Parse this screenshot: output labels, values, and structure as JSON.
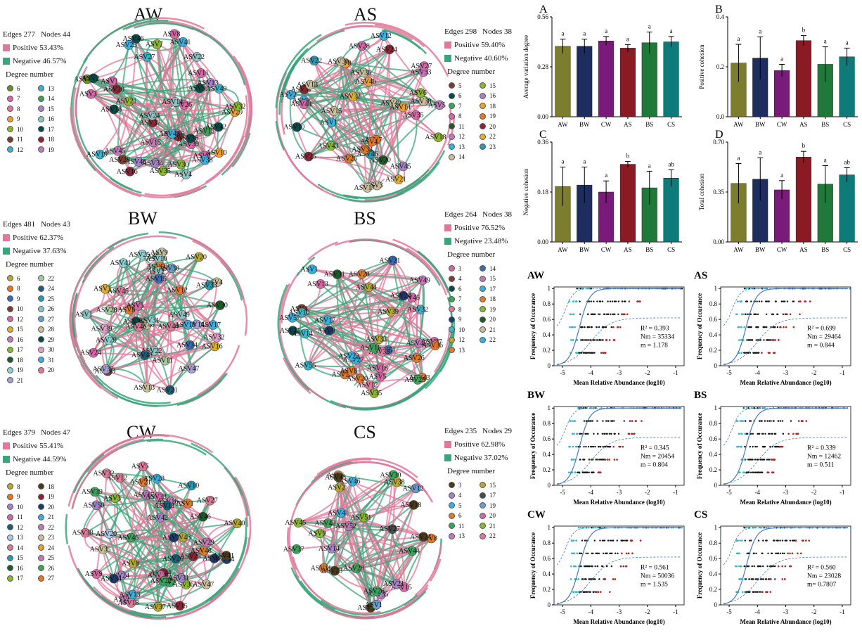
{
  "networks": [
    {
      "id": "AW",
      "title": "AW",
      "edges_label": "Edges 277",
      "nodes_label": "Nodes 44",
      "positive": "Positive 53.43%",
      "negative": "Negative 46.57%",
      "degree_title": "Degree number",
      "degrees": [
        {
          "v": "6",
          "c": "#6b8e23"
        },
        {
          "v": "13",
          "c": "#3cb4c8"
        },
        {
          "v": "7",
          "c": "#d667a6"
        },
        {
          "v": "14",
          "c": "#3aa55a"
        },
        {
          "v": "8",
          "c": "#d87a98"
        },
        {
          "v": "15",
          "c": "#a583c8"
        },
        {
          "v": "9",
          "c": "#e8a030"
        },
        {
          "v": "16",
          "c": "#8fc3c3"
        },
        {
          "v": "10",
          "c": "#8ab82e"
        },
        {
          "v": "17",
          "c": "#0c4a4a"
        },
        {
          "v": "11",
          "c": "#7b3f2e"
        },
        {
          "v": "18",
          "c": "#8b2635"
        },
        {
          "v": "12",
          "c": "#3ab0e0"
        },
        {
          "v": "19",
          "c": "#c07ab8"
        }
      ],
      "node_labels": [
        "ASV4",
        "ASV25",
        "ASV45",
        "ASV1",
        "ASV13",
        "ASV30",
        "ASV29",
        "ASV21",
        "ASV37",
        "ASV28",
        "ASV19",
        "ASV44",
        "ASV24",
        "ASV55",
        "ASV9",
        "ASV3",
        "ASV12",
        "ASV49",
        "ASV6",
        "ASV5",
        "ASV16",
        "ASV38",
        "ASV26",
        "ASV11",
        "ASV18",
        "ASV20",
        "ASV35",
        "ASV27",
        "ASV39",
        "ASV22",
        "ASV40",
        "ASV46",
        "ASV34",
        "ASV8",
        "ASV2",
        "ASV32",
        "ASV36",
        "ASV7",
        "ASV14",
        "ASV10",
        "ASV41",
        "ASV42",
        "ASV43",
        "ASV15"
      ]
    },
    {
      "id": "AS",
      "title": "AS",
      "edges_label": "Edges 298",
      "nodes_label": "Nodes 38",
      "positive": "Positive 59.40%",
      "negative": "Negative 40.60%",
      "degree_title": "Degree number",
      "degrees": [
        {
          "v": "5",
          "c": "#7b3f2e"
        },
        {
          "v": "15",
          "c": "#8ab82e"
        },
        {
          "v": "6",
          "c": "#0c4a4a"
        },
        {
          "v": "16",
          "c": "#a583c8"
        },
        {
          "v": "7",
          "c": "#3aa55a"
        },
        {
          "v": "18",
          "c": "#e8a030"
        },
        {
          "v": "8",
          "c": "#d667a6"
        },
        {
          "v": "19",
          "c": "#e07a2a"
        },
        {
          "v": "11",
          "c": "#1f5c2a"
        },
        {
          "v": "20",
          "c": "#8b2635"
        },
        {
          "v": "12",
          "c": "#c07ab8"
        },
        {
          "v": "22",
          "c": "#e0b030"
        },
        {
          "v": "13",
          "c": "#3ab0e0"
        },
        {
          "v": "23",
          "c": "#2a9ab0"
        },
        {
          "v": "14",
          "c": "#c8bf9a"
        }
      ],
      "node_labels": [
        "ASV9",
        "ASV1",
        "ASV38",
        "ASV42",
        "ASV3",
        "ASV7",
        "ASV22",
        "ASV44",
        "ASV20",
        "ASV18",
        "ASV24",
        "ASV28",
        "ASV15",
        "ASV17",
        "ASV31",
        "ASV46",
        "ASV2",
        "ASV4",
        "ASV8",
        "ASV5",
        "ASV35",
        "ASV33",
        "ASV30",
        "ASV36",
        "ASV40",
        "ASV13",
        "ASV14",
        "ASV12",
        "ASV45",
        "ASV10",
        "ASV27",
        "ASV6",
        "ASV32",
        "ASV25",
        "ASV43",
        "ASV34",
        "ASV21",
        "ASV26"
      ]
    },
    {
      "id": "BW",
      "title": "BW",
      "edges_label": "Edges 481",
      "nodes_label": "Nodes 43",
      "positive": "Positive 62.37%",
      "negative": "Negative 37.63%",
      "degree_title": "Degree number",
      "degrees": [
        {
          "v": "6",
          "c": "#b8a830"
        },
        {
          "v": "22",
          "c": "#a8c8a0"
        },
        {
          "v": "8",
          "c": "#e07a2a"
        },
        {
          "v": "24",
          "c": "#1f5c7a"
        },
        {
          "v": "9",
          "c": "#3a6ab0"
        },
        {
          "v": "25",
          "c": "#2a9ab0"
        },
        {
          "v": "10",
          "c": "#7b3f2e"
        },
        {
          "v": "26",
          "c": "#8fc3c3"
        },
        {
          "v": "12",
          "c": "#d667a6"
        },
        {
          "v": "27",
          "c": "#6aa0c0"
        },
        {
          "v": "15",
          "c": "#e0b030"
        },
        {
          "v": "28",
          "c": "#c8bf9a"
        },
        {
          "v": "16",
          "c": "#c07ab8"
        },
        {
          "v": "29",
          "c": "#0c4a4a"
        },
        {
          "v": "17",
          "c": "#8ab82e"
        },
        {
          "v": "30",
          "c": "#e0a0c8"
        },
        {
          "v": "18",
          "c": "#1f5c2a"
        },
        {
          "v": "31",
          "c": "#3ab0e0"
        },
        {
          "v": "19",
          "c": "#8fd0d0"
        },
        {
          "v": "20",
          "c": "#d87a98"
        },
        {
          "v": "21",
          "c": "#a8a0d0"
        }
      ],
      "node_labels": [
        "ASV21",
        "ASV6",
        "ASV39",
        "ASV30",
        "ASV9",
        "ASV43",
        "ASV4",
        "ASV16",
        "ASV35",
        "ASV32",
        "ASV3",
        "ASV28",
        "ASV41",
        "ASV17",
        "ASV37",
        "ASV22",
        "ASV14",
        "ASV29",
        "ASV40",
        "ASV10",
        "ASV50",
        "ASV46",
        "ASV1",
        "ASV8",
        "ASV44",
        "ASV24",
        "ASV2",
        "ASV31",
        "ASV45",
        "ASV48",
        "ASV34",
        "ASV49",
        "ASV47",
        "ASV38",
        "ASV11",
        "ASV33",
        "ASV25",
        "ASV13",
        "ASV5",
        "ASV20",
        "ASV12",
        "ASV18",
        "ASV15"
      ]
    },
    {
      "id": "BS",
      "title": "BS",
      "edges_label": "Edges 264",
      "nodes_label": "Nodes 38",
      "positive": "Positive 76.52%",
      "negative": "Negative 23.48%",
      "degree_title": "Degree number",
      "degrees": [
        {
          "v": "3",
          "c": "#d667a6"
        },
        {
          "v": "14",
          "c": "#3a6ab0"
        },
        {
          "v": "4",
          "c": "#7b3f2e"
        },
        {
          "v": "15",
          "c": "#c07ab8"
        },
        {
          "v": "6",
          "c": "#0c4a4a"
        },
        {
          "v": "17",
          "c": "#3ab0e0"
        },
        {
          "v": "7",
          "c": "#3aa55a"
        },
        {
          "v": "18",
          "c": "#e07a2a"
        },
        {
          "v": "8",
          "c": "#d87a98"
        },
        {
          "v": "19",
          "c": "#8ab82e"
        },
        {
          "v": "9",
          "c": "#1f3a6a"
        },
        {
          "v": "20",
          "c": "#1f5c2a"
        },
        {
          "v": "10",
          "c": "#3cb4c8"
        },
        {
          "v": "21",
          "c": "#c8bf9a"
        },
        {
          "v": "12",
          "c": "#b8a830"
        },
        {
          "v": "22",
          "c": "#3ab0e0"
        },
        {
          "v": "13",
          "c": "#e07a2a"
        }
      ],
      "node_labels": [
        "ASV57",
        "ASV17",
        "ASV55",
        "ASV51",
        "ASV28",
        "ASV37",
        "ASV33",
        "ASV26",
        "ASV5",
        "ASV45",
        "ASV27",
        "ASV43",
        "ASV13",
        "ASV12",
        "ASV23",
        "ASV22",
        "ASV20",
        "ASV31",
        "ASV42",
        "ASV8",
        "ASV11",
        "ASV49",
        "ASV21",
        "ASV38",
        "ASV14",
        "ASV24",
        "ASV44",
        "ASV4",
        "ASV9",
        "ASV32",
        "ASV39",
        "ASV25",
        "ASV35",
        "ASV16",
        "ASV1",
        "ASV10",
        "ASV18",
        "ASV36"
      ]
    },
    {
      "id": "CW",
      "title": "CW",
      "edges_label": "Edges 379",
      "nodes_label": "Nodes 47",
      "positive": "Positive 55.41%",
      "negative": "Negative 44.59%",
      "degree_title": "Degree number",
      "degrees": [
        {
          "v": "8",
          "c": "#b8a830"
        },
        {
          "v": "18",
          "c": "#4a3a1a"
        },
        {
          "v": "9",
          "c": "#e07a2a"
        },
        {
          "v": "19",
          "c": "#8b2635"
        },
        {
          "v": "10",
          "c": "#a583c8"
        },
        {
          "v": "20",
          "c": "#1f3a6a"
        },
        {
          "v": "11",
          "c": "#d667a6"
        },
        {
          "v": "21",
          "c": "#3ab0e0"
        },
        {
          "v": "12",
          "c": "#1f5c7a"
        },
        {
          "v": "22",
          "c": "#c07ab8"
        },
        {
          "v": "13",
          "c": "#a8c8e8"
        },
        {
          "v": "23",
          "c": "#c8bf9a"
        },
        {
          "v": "14",
          "c": "#d87a98"
        },
        {
          "v": "24",
          "c": "#e8a030"
        },
        {
          "v": "15",
          "c": "#2a9ab0"
        },
        {
          "v": "25",
          "c": "#c07ab8"
        },
        {
          "v": "16",
          "c": "#1f5c2a"
        },
        {
          "v": "26",
          "c": "#3aa55a"
        },
        {
          "v": "17",
          "c": "#8ab82e"
        },
        {
          "v": "27",
          "c": "#e07a2a"
        }
      ],
      "node_labels": [
        "ASV37",
        "ASV46",
        "ASV9",
        "ASV40",
        "ASV17",
        "ASV5",
        "ASV27",
        "ASV6",
        "ASV1",
        "ASV25",
        "ASV24",
        "ASV50",
        "ASV14",
        "ASV12",
        "ASV30",
        "ASV48",
        "ASV4",
        "ASV2",
        "ASV8",
        "ASV32",
        "ASV33",
        "ASV16",
        "ASV15",
        "ASV43",
        "ASV47",
        "ASV42",
        "ASV13",
        "ASV45",
        "ASV44",
        "ASV22",
        "ASV41",
        "ASV10",
        "ASV3",
        "ASV38",
        "ASV21",
        "ASV39",
        "ASV36",
        "ASV26",
        "ASV31",
        "ASV28",
        "ASV20",
        "ASV34",
        "ASV11",
        "ASV18",
        "ASV35",
        "ASV29",
        "ASV7"
      ]
    },
    {
      "id": "CS",
      "title": "CS",
      "edges_label": "Edges 235",
      "nodes_label": "Nodes 29",
      "positive": "Positive 62.98%",
      "negative": "Negative 37.02%",
      "degree_title": "Degree number",
      "degrees": [
        {
          "v": "3",
          "c": "#4a3a1a"
        },
        {
          "v": "15",
          "c": "#b8a830"
        },
        {
          "v": "4",
          "c": "#a583c8"
        },
        {
          "v": "17",
          "c": "#4a4a4a"
        },
        {
          "v": "5",
          "c": "#3ab0e0"
        },
        {
          "v": "19",
          "c": "#6aa0d0"
        },
        {
          "v": "6",
          "c": "#e07a2a"
        },
        {
          "v": "20",
          "c": "#d667a6"
        },
        {
          "v": "11",
          "c": "#3aa55a"
        },
        {
          "v": "21",
          "c": "#8ab82e"
        },
        {
          "v": "13",
          "c": "#c07ab8"
        },
        {
          "v": "22",
          "c": "#d87a98"
        }
      ],
      "node_labels": [
        "ASV8",
        "ASV42",
        "ASV46",
        "ASV35",
        "ASV52",
        "ASV30",
        "ASV10",
        "ASV26",
        "ASV51",
        "ASV1",
        "ASV11",
        "ASV2",
        "ASV9",
        "ASV45",
        "ASV18",
        "ASV15",
        "ASV23",
        "ASV24",
        "ASV27",
        "ASV6",
        "ASV12",
        "ASV14",
        "ASV28",
        "ASV37",
        "ASV44",
        "ASV38",
        "ASV21",
        "ASV41",
        "ASV43"
      ]
    }
  ],
  "bar_charts": [
    {
      "panel": "A",
      "ylabel": "Average variation degree",
      "categories": [
        "AW",
        "BW",
        "CW",
        "AS",
        "BS",
        "CS"
      ],
      "values": [
        0.395,
        0.395,
        0.425,
        0.385,
        0.415,
        0.42
      ],
      "errors": [
        0.04,
        0.04,
        0.025,
        0.02,
        0.06,
        0.03
      ],
      "letters": [
        "a",
        "a",
        "a",
        "a",
        "a",
        "a"
      ],
      "ylim": [
        0,
        0.56
      ],
      "yticks": [
        "0.00",
        "0.28",
        "0.56"
      ]
    },
    {
      "panel": "B",
      "ylabel": "Positive cohesion",
      "categories": [
        "AW",
        "BW",
        "CW",
        "AS",
        "BS",
        "CS"
      ],
      "values": [
        0.215,
        0.235,
        0.185,
        0.305,
        0.21,
        0.24
      ],
      "errors": [
        0.075,
        0.085,
        0.025,
        0.02,
        0.07,
        0.035
      ],
      "letters": [
        "a",
        "a",
        "a",
        "b",
        "a",
        "a"
      ],
      "ylim": [
        0,
        0.4
      ],
      "yticks": [
        "0.0",
        "0.2",
        "0.4"
      ]
    },
    {
      "panel": "C",
      "ylabel": "Negative cohesion",
      "categories": [
        "AW",
        "BW",
        "CW",
        "AS",
        "BS",
        "CS"
      ],
      "values": [
        0.2,
        0.205,
        0.18,
        0.28,
        0.195,
        0.23
      ],
      "errors": [
        0.07,
        0.065,
        0.04,
        0.01,
        0.06,
        0.03
      ],
      "letters": [
        "a",
        "a",
        "a",
        "b",
        "a",
        "ab"
      ],
      "ylim": [
        0,
        0.36
      ],
      "yticks": [
        "0.00",
        "0.18",
        "0.36"
      ]
    },
    {
      "panel": "D",
      "ylabel": "Total cohesion",
      "categories": [
        "AW",
        "BW",
        "CW",
        "AS",
        "BS",
        "CS"
      ],
      "values": [
        0.41,
        0.44,
        0.365,
        0.595,
        0.405,
        0.47
      ],
      "errors": [
        0.14,
        0.15,
        0.065,
        0.04,
        0.13,
        0.05
      ],
      "letters": [
        "a",
        "a",
        "a",
        "b",
        "a",
        "ab"
      ],
      "ylim": [
        0,
        0.7
      ],
      "yticks": [
        "0.00",
        "0.35",
        "0.70"
      ]
    }
  ],
  "neutral_charts": [
    {
      "title": "AW",
      "r2": "R² = 0.393",
      "nm": "Nm = 35334",
      "m": "m = 1.178"
    },
    {
      "title": "AS",
      "r2": "R² = 0.699",
      "nm": "Nm = 29464",
      "m": "m = 0.844"
    },
    {
      "title": "BW",
      "r2": "R² = 0.345",
      "nm": "Nm = 20454",
      "m": "m = 0.804"
    },
    {
      "title": "BS",
      "r2": "R² = 0.339",
      "nm": "Nm = 12462",
      "m": "m = 0.511"
    },
    {
      "title": "CW",
      "r2": "R² = 0.561",
      "nm": "Nm = 50036",
      "m": "m = 1.535"
    },
    {
      "title": "CS",
      "r2": "R² = 0.560",
      "nm": "Nm = 23028",
      "m": "m= 0.7807"
    }
  ],
  "neutral_axes": {
    "xlabel": "Mean Relative Abundance (log10)",
    "ylabel": "Frequency of Occurance",
    "xticks": [
      "-5",
      "-4",
      "-3",
      "-2",
      "-1"
    ],
    "yticks": [
      "0",
      "0.2",
      "0.4",
      "0.6",
      "0.8",
      "1"
    ]
  },
  "colors": {
    "positive": "#e0789a",
    "negative": "#3aa57a",
    "bar_colors": [
      "#7d7d2e",
      "#1c2d5e",
      "#7a1a7a",
      "#8a1a24",
      "#1f7a3a",
      "#0f7a7a"
    ]
  },
  "chart_data": [
    {
      "type": "bar",
      "panel": "A",
      "categories": [
        "AW",
        "BW",
        "CW",
        "AS",
        "BS",
        "CS"
      ],
      "values": [
        0.395,
        0.395,
        0.425,
        0.385,
        0.415,
        0.42
      ],
      "ylabel": "Average variation degree",
      "ylim": [
        0,
        0.56
      ]
    },
    {
      "type": "bar",
      "panel": "B",
      "categories": [
        "AW",
        "BW",
        "CW",
        "AS",
        "BS",
        "CS"
      ],
      "values": [
        0.215,
        0.235,
        0.185,
        0.305,
        0.21,
        0.24
      ],
      "ylabel": "Positive cohesion",
      "ylim": [
        0,
        0.4
      ]
    },
    {
      "type": "bar",
      "panel": "C",
      "categories": [
        "AW",
        "BW",
        "CW",
        "AS",
        "BS",
        "CS"
      ],
      "values": [
        0.2,
        0.205,
        0.18,
        0.28,
        0.195,
        0.23
      ],
      "ylabel": "Negative cohesion",
      "ylim": [
        0,
        0.36
      ]
    },
    {
      "type": "bar",
      "panel": "D",
      "categories": [
        "AW",
        "BW",
        "CW",
        "AS",
        "BS",
        "CS"
      ],
      "values": [
        0.41,
        0.44,
        0.365,
        0.595,
        0.405,
        0.47
      ],
      "ylabel": "Total cohesion",
      "ylim": [
        0,
        0.7
      ]
    },
    {
      "type": "scatter",
      "panels": [
        "AW",
        "AS",
        "BW",
        "BS",
        "CW",
        "CS"
      ],
      "xlabel": "Mean Relative Abundance (log10)",
      "ylabel": "Frequency of Occurance",
      "xlim": [
        -5.3,
        -0.7
      ],
      "ylim": [
        0,
        1
      ]
    }
  ]
}
